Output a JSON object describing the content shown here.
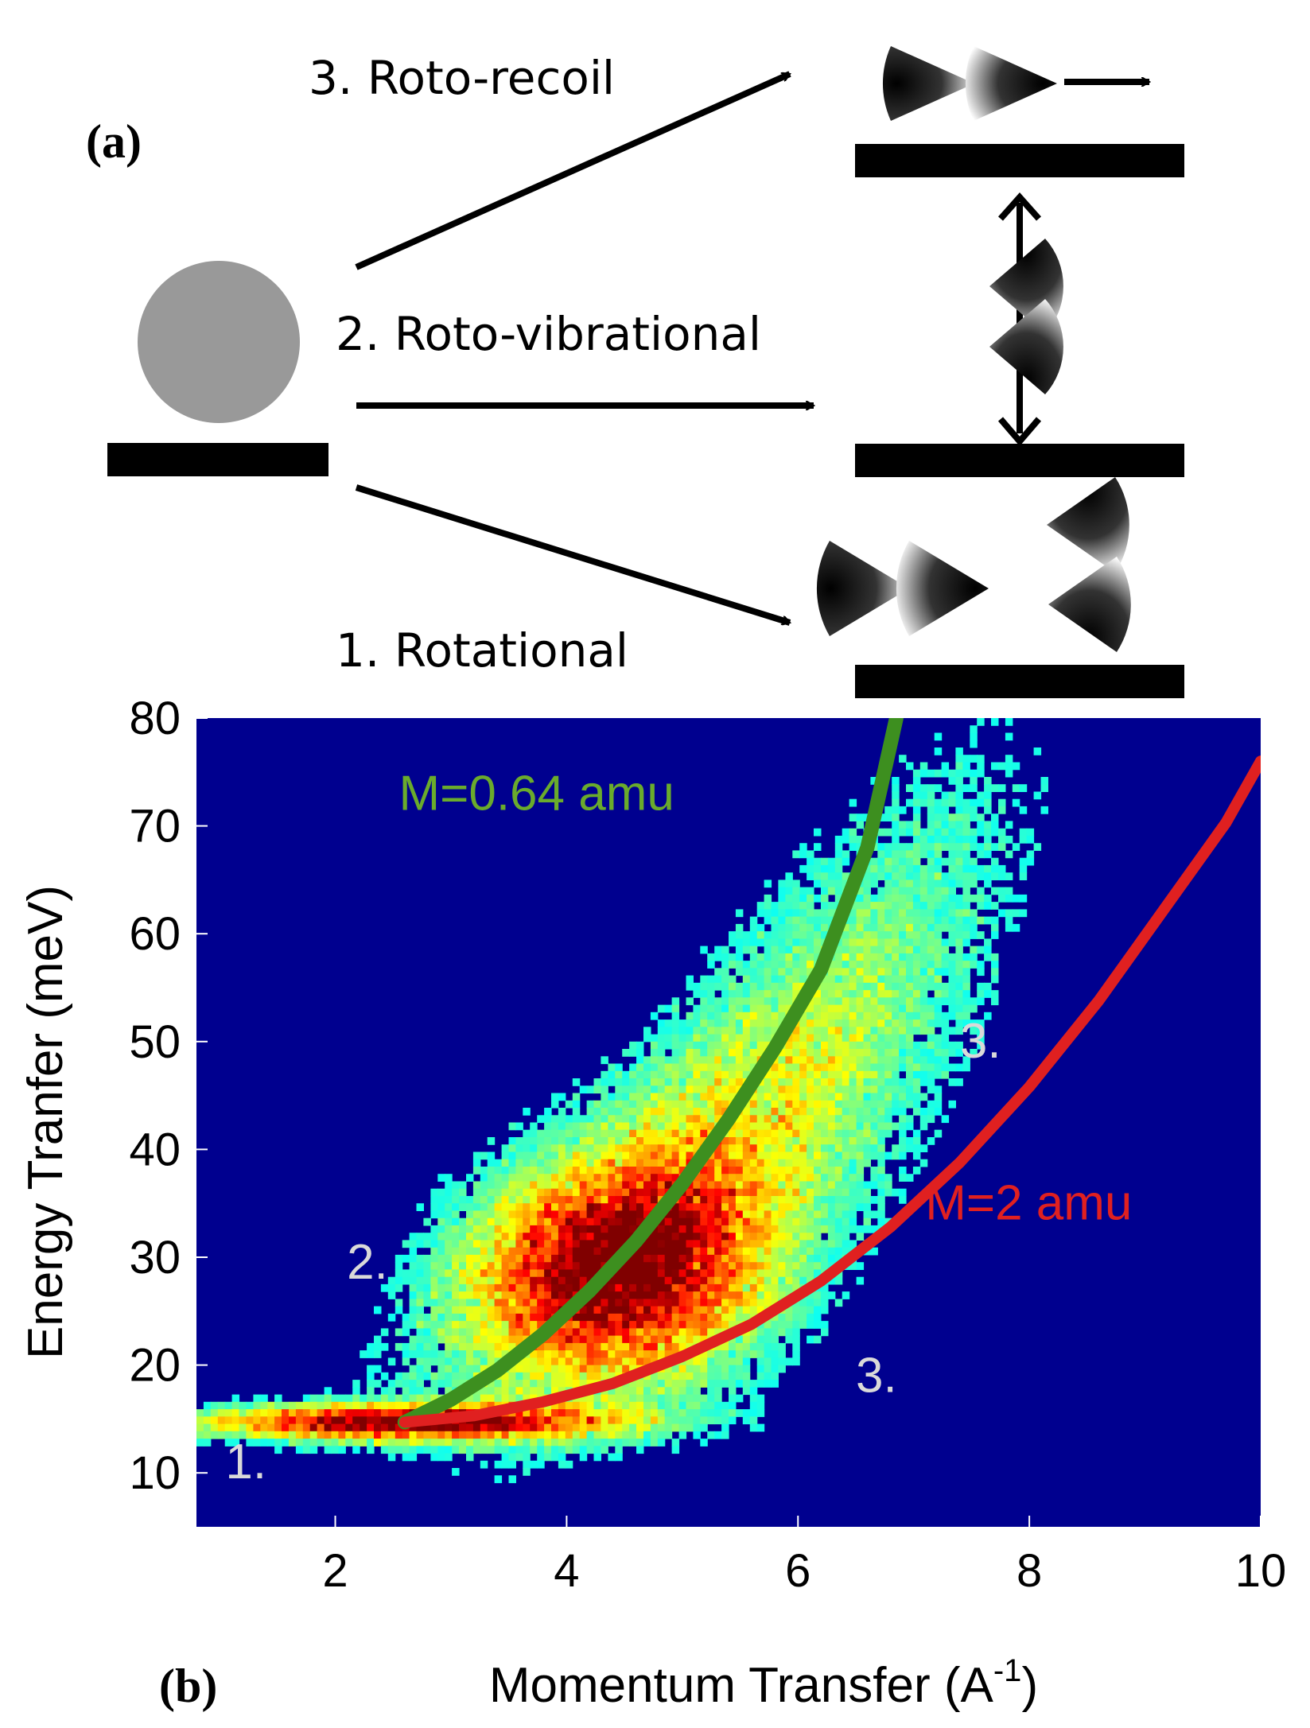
{
  "panel_a": {
    "label": "(a)",
    "transitions": [
      {
        "label": "3. Roto-recoil"
      },
      {
        "label": "2. Roto-vibrational"
      },
      {
        "label": "1. Rotational"
      }
    ]
  },
  "chart_data": {
    "type": "heatmap",
    "panel_label": "(b)",
    "xlabel": "Momentum Transfer (A",
    "xlabel_sup": "-1",
    "xlabel_end": ")",
    "ylabel": "Energy Tranfer (meV)",
    "xlim": [
      0.8,
      10
    ],
    "ylim": [
      5,
      80
    ],
    "x_ticks": [
      2,
      4,
      6,
      8,
      10
    ],
    "y_ticks": [
      10,
      20,
      30,
      40,
      50,
      60,
      70,
      80
    ],
    "colormap": "jet",
    "background_color": "#00008f",
    "regions": [
      {
        "label": "1.",
        "x": 1.05,
        "y": 9.5
      },
      {
        "label": "2.",
        "x": 2.1,
        "y": 28
      },
      {
        "label": "3.",
        "x": 7.4,
        "y": 48.5
      },
      {
        "label": "3.",
        "x": 6.5,
        "y": 17.5
      }
    ],
    "intensity_features": [
      {
        "name": "rotational-band",
        "x": 1.2,
        "y": 14.8,
        "note": "intense band at ~14.7 meV from Q~1 to 5"
      },
      {
        "name": "roto-vibrational-cloud",
        "x": 4.3,
        "y": 28,
        "note": "broad maximum near Q~4.3, E~28 meV"
      }
    ],
    "series": [
      {
        "name": "M=0.64 amu",
        "label_text": "M=0.64 amu",
        "color": "#3d8f1f",
        "label_color": "#6aab2c",
        "x": [
          2.6,
          3.0,
          3.4,
          3.8,
          4.2,
          4.6,
          5.0,
          5.4,
          5.8,
          6.2,
          6.6,
          6.85
        ],
        "y": [
          14.7,
          16.8,
          19.5,
          22.9,
          26.9,
          31.5,
          36.8,
          42.8,
          49.4,
          56.7,
          68.0,
          80.0
        ]
      },
      {
        "name": "M=2 amu",
        "label_text": "M=2 amu",
        "color": "#e02020",
        "label_color": "#e02020",
        "x": [
          2.6,
          3.2,
          3.8,
          4.4,
          5.0,
          5.6,
          6.2,
          6.8,
          7.4,
          8.0,
          8.6,
          9.2,
          9.7,
          10.0
        ],
        "y": [
          14.7,
          15.3,
          16.6,
          18.3,
          20.8,
          23.8,
          27.8,
          32.8,
          38.8,
          45.8,
          53.8,
          62.8,
          70.3,
          76.0
        ]
      }
    ]
  }
}
